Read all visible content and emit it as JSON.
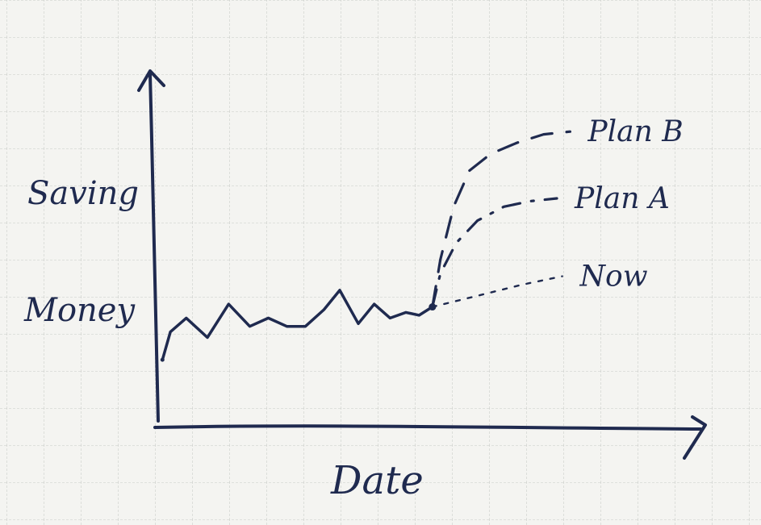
{
  "chart_data": {
    "type": "line",
    "title": "",
    "ylabel_line1": "Saving",
    "ylabel_line2": "Money",
    "xlabel": "Date",
    "grid": true,
    "legend": "inline labels at right end of each series",
    "ink_color": "#1f2a4f",
    "paper_color": "#f4f4f1",
    "grid_color": "#c9cbc8",
    "x_range": [
      0,
      100
    ],
    "y_range": [
      0,
      100
    ],
    "history": {
      "name": "",
      "style": "solid",
      "x": [
        1,
        4,
        10,
        18,
        26,
        34,
        41,
        48,
        55,
        62,
        68,
        75,
        81,
        87,
        93,
        98,
        103
      ],
      "y": [
        22,
        32,
        37,
        30,
        42,
        34,
        37,
        34,
        34,
        40,
        47,
        35,
        42,
        37,
        39,
        38,
        41
      ]
    },
    "projections": [
      {
        "name": "Plan B",
        "style": "dashed",
        "x": [
          103,
          106,
          111,
          117,
          125,
          135,
          145,
          155
        ],
        "y": [
          41,
          58,
          77,
          90,
          96,
          100,
          103,
          104
        ]
      },
      {
        "name": "Plan A",
        "style": "dash-dot",
        "x": [
          103,
          106,
          112,
          120,
          130,
          140,
          150
        ],
        "y": [
          41,
          53,
          64,
          72,
          77,
          79,
          80
        ]
      },
      {
        "name": "Now",
        "style": "dotted",
        "x": [
          103,
          120,
          137,
          152
        ],
        "y": [
          41,
          45,
          49,
          52
        ]
      }
    ]
  }
}
